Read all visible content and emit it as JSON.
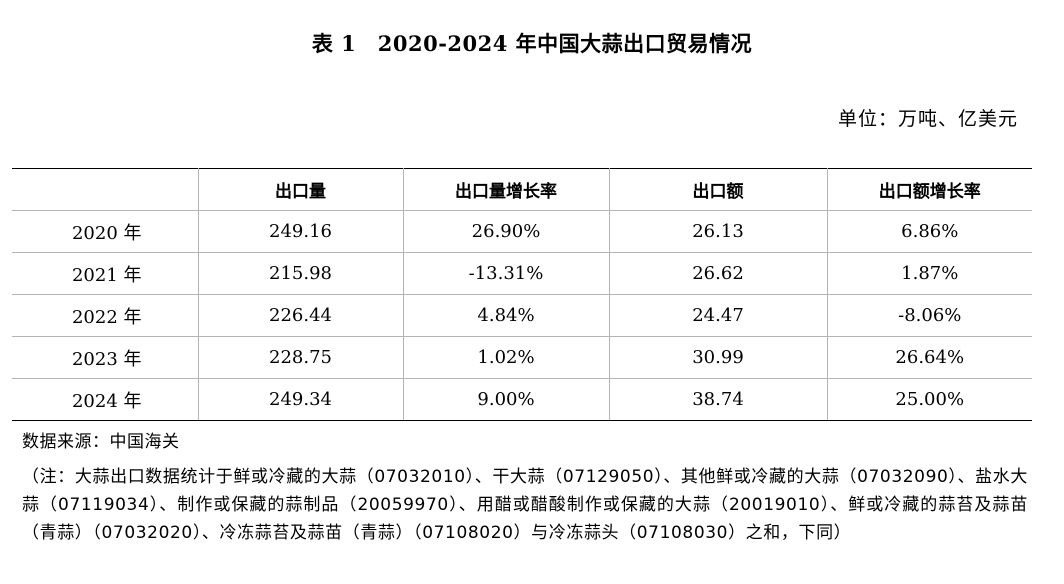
{
  "title": "表 1　2020-2024 年中国大蒜出口贸易情况",
  "unit": "单位：万吨、亿美元",
  "table": {
    "headers": [
      "",
      "出口量",
      "出口量增长率",
      "出口额",
      "出口额增长率"
    ],
    "rows": [
      [
        "2020 年",
        "249.16",
        "26.90%",
        "26.13",
        "6.86%"
      ],
      [
        "2021 年",
        "215.98",
        "-13.31%",
        "26.62",
        "1.87%"
      ],
      [
        "2022 年",
        "226.44",
        "4.84%",
        "24.47",
        "-8.06%"
      ],
      [
        "2023 年",
        "228.75",
        "1.02%",
        "30.99",
        "26.64%"
      ],
      [
        "2024 年",
        "249.34",
        "9.00%",
        "38.74",
        "25.00%"
      ]
    ]
  },
  "source": "数据来源：中国海关",
  "note": "（注：大蒜出口数据统计于鲜或冷藏的大蒜（07032010）、干大蒜（07129050）、其他鲜或冷藏的大蒜（07032090）、盐水大蒜（07119034）、制作或保藏的蒜制品（20059970）、用醋或醋酸制作或保藏的大蒜（20019010）、鲜或冷藏的蒜苔及蒜苗（青蒜）（07032020）、冷冻蒜苔及蒜苗（青蒜）（07108020）与冷冻蒜头（07108030）之和，下同）"
}
